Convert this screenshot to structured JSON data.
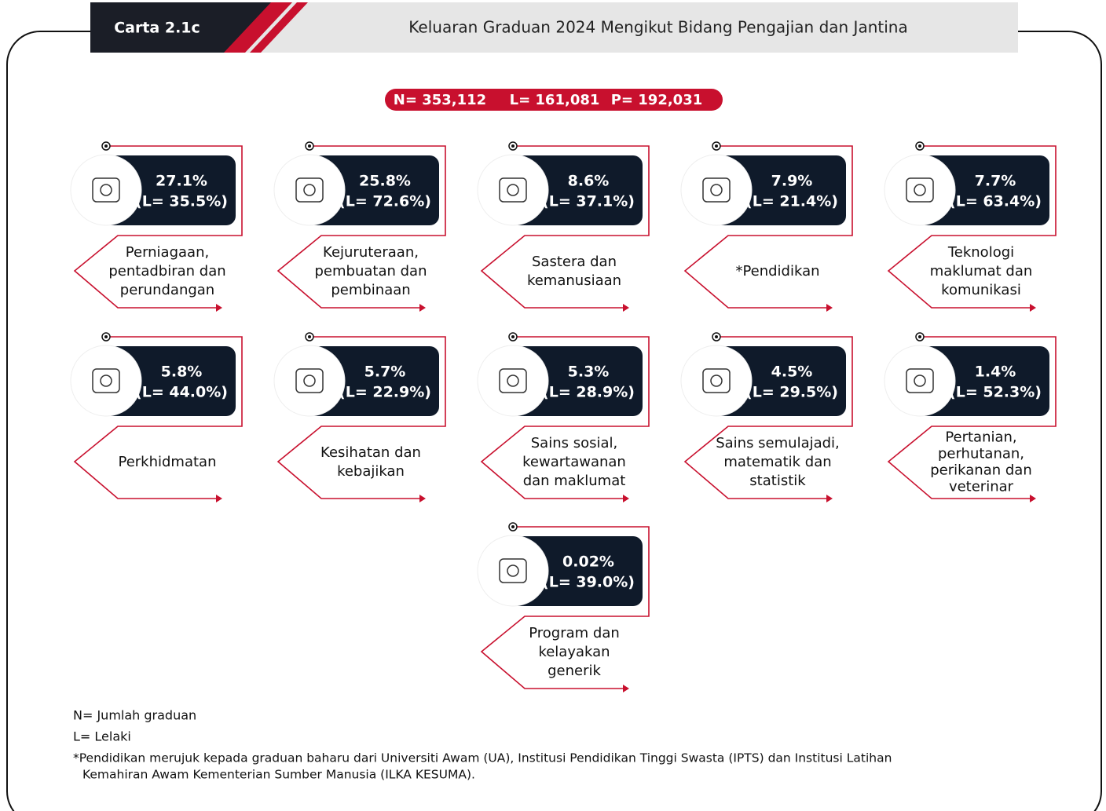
{
  "header": {
    "tag": "Carta 2.1c",
    "title": "Keluaran Graduan 2024 Mengikut Bidang Pengajian dan Jantina"
  },
  "summary": [
    "N= 353,112",
    "L= 161,081",
    "P= 192,031"
  ],
  "items": [
    {
      "share": "27.1%",
      "male": "(L= 35.5%)",
      "label": [
        "Perniagaan,",
        "pentadbiran dan",
        "perundangan"
      ]
    },
    {
      "share": "25.8%",
      "male": "(L= 72.6%)",
      "label": [
        "Kejuruteraan,",
        "pembuatan dan",
        "pembinaan"
      ]
    },
    {
      "share": "8.6%",
      "male": "(L= 37.1%)",
      "label": [
        "Sastera dan",
        "kemanusiaan"
      ]
    },
    {
      "share": "7.9%",
      "male": "(L= 21.4%)",
      "label": [
        "*Pendidikan"
      ]
    },
    {
      "share": "7.7%",
      "male": "(L= 63.4%)",
      "label": [
        "Teknologi",
        "maklumat dan",
        "komunikasi"
      ]
    },
    {
      "share": "5.8%",
      "male": "(L= 44.0%)",
      "label": [
        "Perkhidmatan"
      ]
    },
    {
      "share": "5.7%",
      "male": "(L= 22.9%)",
      "label": [
        "Kesihatan dan",
        "kebajikan"
      ]
    },
    {
      "share": "5.3%",
      "male": "(L= 28.9%)",
      "label": [
        "Sains sosial,",
        "kewartawanan",
        "dan maklumat"
      ]
    },
    {
      "share": "4.5%",
      "male": "(L= 29.5%)",
      "label": [
        "Sains semulajadi,",
        "matematik dan",
        "statistik"
      ]
    },
    {
      "share": "1.4%",
      "male": "(L= 52.3%)",
      "label": [
        "Pertanian,",
        "perhutanan,",
        "perikanan dan",
        "veterinar"
      ]
    },
    {
      "share": "0.02%",
      "male": "(L= 39.0%)",
      "label": [
        "Program dan",
        "kelayakan",
        "generik"
      ]
    }
  ],
  "notes": [
    "N= Jumlah graduan",
    "L= Lelaki",
    "*Pendidikan merujuk kepada graduan baharu dari Universiti Awam (UA), Institusi Pendidikan Tinggi Swasta (IPTS) dan Institusi Latihan",
    "Kemahiran Awam Kementerian Sumber Manusia (ILKA KESUMA)."
  ]
}
